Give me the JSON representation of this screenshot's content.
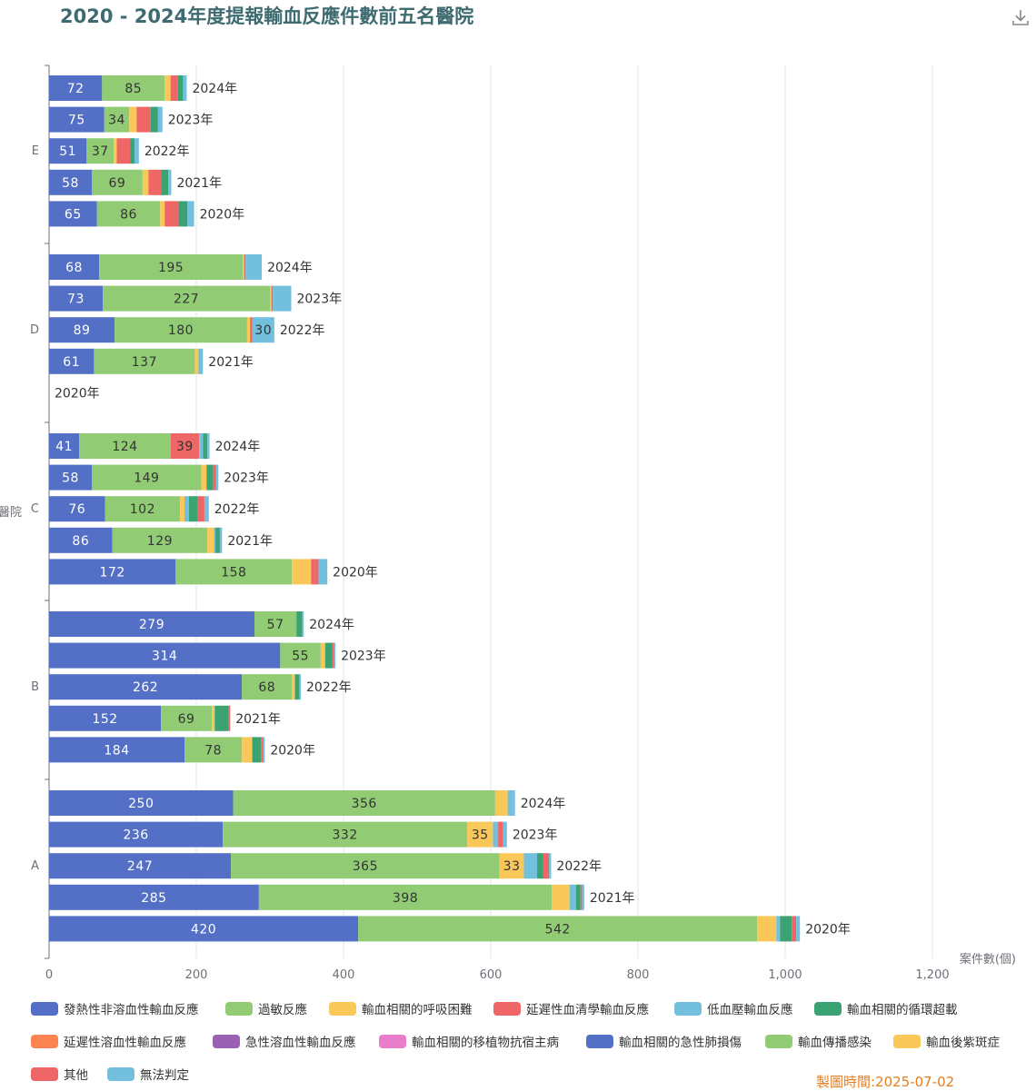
{
  "title": "2020 - 2024年度提報輸血反應件數前五名醫院",
  "footer": "製圖時間:2025-07-02",
  "download_icon": "download-icon",
  "chart_data": {
    "type": "bar",
    "orientation": "horizontal",
    "stacked": true,
    "xlabel": "案件數(個)",
    "ylabel": "醫院",
    "xlim": [
      0,
      1200
    ],
    "x_ticks": [
      "0",
      "200",
      "400",
      "600",
      "800",
      "1,000",
      "1,200"
    ],
    "x_tick_values": [
      0,
      200,
      400,
      600,
      800,
      1000,
      1200
    ],
    "grid": true,
    "legend_position": "bottom",
    "hospitals": [
      "E",
      "D",
      "C",
      "B",
      "A"
    ],
    "years": [
      "2024年",
      "2023年",
      "2022年",
      "2021年",
      "2020年"
    ],
    "series": [
      {
        "name": "發熱性非溶血性輸血反應",
        "color": "#5470c6"
      },
      {
        "name": "過敏反應",
        "color": "#91cc75"
      },
      {
        "name": "輸血相關的呼吸困難",
        "color": "#fac858"
      },
      {
        "name": "延遲性血清學輸血反應",
        "color": "#ee6666"
      },
      {
        "name": "低血壓輸血反應",
        "color": "#73c0de"
      },
      {
        "name": "輸血相關的循環超載",
        "color": "#3ba272"
      },
      {
        "name": "延遲性溶血性輸血反應",
        "color": "#fc8452"
      },
      {
        "name": "急性溶血性輸血反應",
        "color": "#9a60b4"
      },
      {
        "name": "輸血相關的移植物抗宿主病",
        "color": "#ea7ccc"
      },
      {
        "name": "輸血相關的急性肺損傷",
        "color": "#5470c6"
      },
      {
        "name": "輸血傳播感染",
        "color": "#91cc75"
      },
      {
        "name": "輸血後紫斑症",
        "color": "#fac858"
      },
      {
        "name": "其他",
        "color": "#ee6666"
      },
      {
        "name": "無法判定",
        "color": "#73c0de"
      }
    ],
    "rows": [
      {
        "hospital": "E",
        "year": "2024年",
        "values": [
          72,
          85,
          8,
          10,
          0,
          7,
          0,
          0,
          0,
          0,
          0,
          0,
          0,
          5
        ]
      },
      {
        "hospital": "E",
        "year": "2023年",
        "values": [
          75,
          34,
          10,
          19,
          0,
          10,
          0,
          0,
          0,
          0,
          0,
          0,
          0,
          6
        ]
      },
      {
        "hospital": "E",
        "year": "2022年",
        "values": [
          51,
          37,
          4,
          18,
          0,
          6,
          0,
          0,
          0,
          0,
          0,
          0,
          0,
          6
        ]
      },
      {
        "hospital": "E",
        "year": "2021年",
        "values": [
          58,
          69,
          8,
          17,
          0,
          10,
          0,
          0,
          0,
          0,
          0,
          0,
          0,
          4
        ]
      },
      {
        "hospital": "E",
        "year": "2020年",
        "values": [
          65,
          86,
          6,
          19,
          0,
          12,
          0,
          0,
          0,
          0,
          0,
          0,
          0,
          9
        ]
      },
      {
        "hospital": "D",
        "year": "2024年",
        "values": [
          68,
          195,
          2,
          2,
          0,
          0,
          0,
          0,
          0,
          0,
          0,
          0,
          0,
          22
        ]
      },
      {
        "hospital": "D",
        "year": "2023年",
        "values": [
          73,
          227,
          2,
          2,
          0,
          0,
          0,
          0,
          0,
          0,
          0,
          0,
          0,
          25
        ]
      },
      {
        "hospital": "D",
        "year": "2022年",
        "values": [
          89,
          180,
          4,
          3,
          0,
          0,
          0,
          0,
          0,
          0,
          0,
          0,
          0,
          30
        ]
      },
      {
        "hospital": "D",
        "year": "2021年",
        "values": [
          61,
          137,
          5,
          0,
          0,
          0,
          0,
          0,
          0,
          0,
          0,
          0,
          0,
          6
        ]
      },
      {
        "hospital": "D",
        "year": "2020年",
        "values": [
          0,
          0,
          0,
          0,
          0,
          0,
          0,
          0,
          0,
          0,
          0,
          0,
          0,
          0
        ]
      },
      {
        "hospital": "C",
        "year": "2024年",
        "values": [
          41,
          124,
          0,
          39,
          5,
          6,
          0,
          0,
          0,
          0,
          0,
          0,
          0,
          3
        ]
      },
      {
        "hospital": "C",
        "year": "2023年",
        "values": [
          58,
          149,
          7,
          0,
          0,
          9,
          0,
          0,
          0,
          0,
          0,
          0,
          4,
          3
        ]
      },
      {
        "hospital": "C",
        "year": "2022年",
        "values": [
          76,
          102,
          6,
          0,
          6,
          12,
          0,
          0,
          0,
          0,
          0,
          0,
          9,
          6
        ]
      },
      {
        "hospital": "C",
        "year": "2021年",
        "values": [
          86,
          129,
          9,
          0,
          2,
          6,
          0,
          0,
          0,
          0,
          0,
          0,
          0,
          3
        ]
      },
      {
        "hospital": "C",
        "year": "2020年",
        "values": [
          172,
          158,
          26,
          5,
          0,
          0,
          0,
          0,
          0,
          0,
          0,
          0,
          5,
          12
        ]
      },
      {
        "hospital": "B",
        "year": "2024年",
        "values": [
          279,
          57,
          0,
          0,
          0,
          8,
          0,
          0,
          0,
          0,
          0,
          0,
          0,
          2
        ]
      },
      {
        "hospital": "B",
        "year": "2023年",
        "values": [
          314,
          55,
          6,
          0,
          0,
          10,
          0,
          0,
          0,
          0,
          0,
          0,
          2,
          2
        ]
      },
      {
        "hospital": "B",
        "year": "2022年",
        "values": [
          262,
          68,
          4,
          0,
          0,
          6,
          0,
          0,
          0,
          0,
          0,
          0,
          0,
          2
        ]
      },
      {
        "hospital": "B",
        "year": "2021年",
        "values": [
          152,
          69,
          4,
          0,
          0,
          19,
          0,
          0,
          0,
          0,
          0,
          0,
          2,
          0
        ]
      },
      {
        "hospital": "B",
        "year": "2020年",
        "values": [
          184,
          78,
          14,
          0,
          0,
          12,
          0,
          0,
          0,
          0,
          0,
          0,
          3,
          2
        ]
      },
      {
        "hospital": "A",
        "year": "2024年",
        "values": [
          250,
          356,
          17,
          0,
          7,
          0,
          0,
          0,
          0,
          0,
          0,
          0,
          0,
          3
        ]
      },
      {
        "hospital": "A",
        "year": "2023年",
        "values": [
          236,
          332,
          35,
          0,
          7,
          0,
          0,
          0,
          0,
          0,
          0,
          0,
          7,
          5
        ]
      },
      {
        "hospital": "A",
        "year": "2022年",
        "values": [
          247,
          365,
          33,
          0,
          18,
          8,
          0,
          0,
          0,
          0,
          0,
          0,
          8,
          3
        ]
      },
      {
        "hospital": "A",
        "year": "2021年",
        "values": [
          285,
          398,
          24,
          0,
          9,
          6,
          0,
          0,
          0,
          0,
          0,
          0,
          2,
          3
        ]
      },
      {
        "hospital": "A",
        "year": "2020年",
        "values": [
          420,
          542,
          26,
          0,
          5,
          16,
          0,
          0,
          0,
          0,
          0,
          0,
          6,
          5
        ]
      }
    ]
  }
}
